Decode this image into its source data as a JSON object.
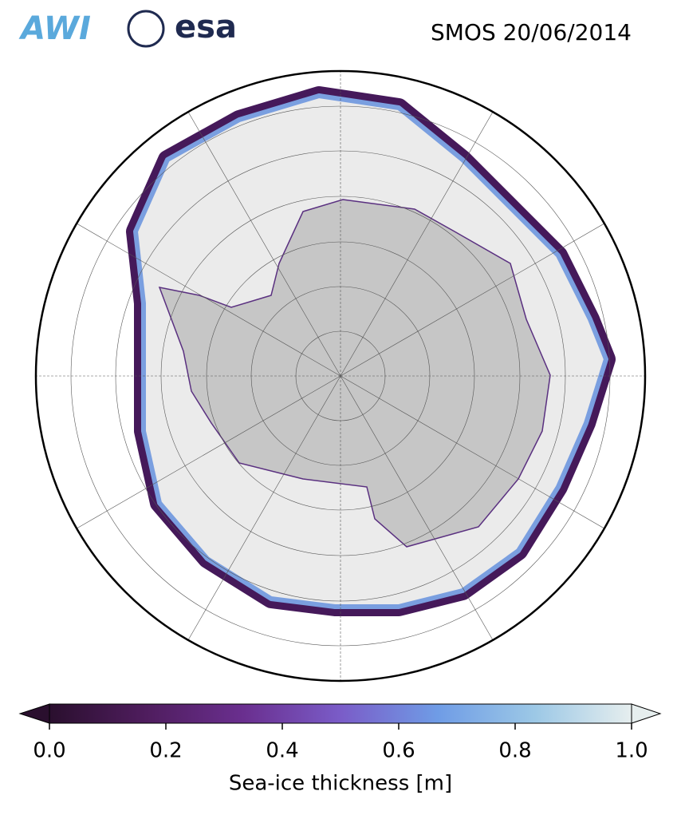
{
  "header": {
    "logos": [
      "AWI",
      "esa"
    ],
    "title": "SMOS 20/06/2014"
  },
  "colorbar": {
    "label": "Sea-ice thickness [m]",
    "clim": [
      0,
      1
    ],
    "ticks": [
      {
        "value": 0,
        "label": "0.0"
      },
      0.2,
      0.4,
      0.6,
      0.8,
      {
        "value": 1,
        "label": "1.0"
      }
    ],
    "colormap": [
      "#2a0f2e",
      "#4f1d5e",
      "#6a2f8f",
      "#7a5cc8",
      "#6f9ce6",
      "#9cc8e6",
      "#e6eeee"
    ]
  }
}
